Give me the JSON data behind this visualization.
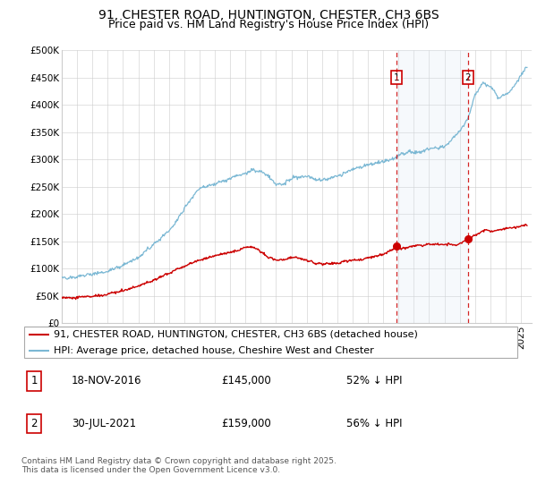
{
  "title": "91, CHESTER ROAD, HUNTINGTON, CHESTER, CH3 6BS",
  "subtitle": "Price paid vs. HM Land Registry's House Price Index (HPI)",
  "ylim": [
    0,
    500000
  ],
  "yticks": [
    0,
    50000,
    100000,
    150000,
    200000,
    250000,
    300000,
    350000,
    400000,
    450000,
    500000
  ],
  "ytick_labels": [
    "£0",
    "£50K",
    "£100K",
    "£150K",
    "£200K",
    "£250K",
    "£300K",
    "£350K",
    "£400K",
    "£450K",
    "£500K"
  ],
  "xlim_start": 1995.0,
  "xlim_end": 2025.7,
  "hpi_color": "#7bb8d4",
  "price_color": "#cc0000",
  "vline_color": "#cc0000",
  "shade_color": "#dce9f5",
  "sale1_x": 2016.88,
  "sale1_price": 145000,
  "sale1_label": "1",
  "sale2_x": 2021.55,
  "sale2_price": 159000,
  "sale2_label": "2",
  "legend_label_red": "91, CHESTER ROAD, HUNTINGTON, CHESTER, CH3 6BS (detached house)",
  "legend_label_blue": "HPI: Average price, detached house, Cheshire West and Chester",
  "table_row1": [
    "1",
    "18-NOV-2016",
    "£145,000",
    "52% ↓ HPI"
  ],
  "table_row2": [
    "2",
    "30-JUL-2021",
    "£159,000",
    "56% ↓ HPI"
  ],
  "footer": "Contains HM Land Registry data © Crown copyright and database right 2025.\nThis data is licensed under the Open Government Licence v3.0.",
  "title_fontsize": 10,
  "subtitle_fontsize": 9,
  "tick_fontsize": 7.5,
  "legend_fontsize": 8,
  "table_fontsize": 8.5,
  "footer_fontsize": 6.5
}
